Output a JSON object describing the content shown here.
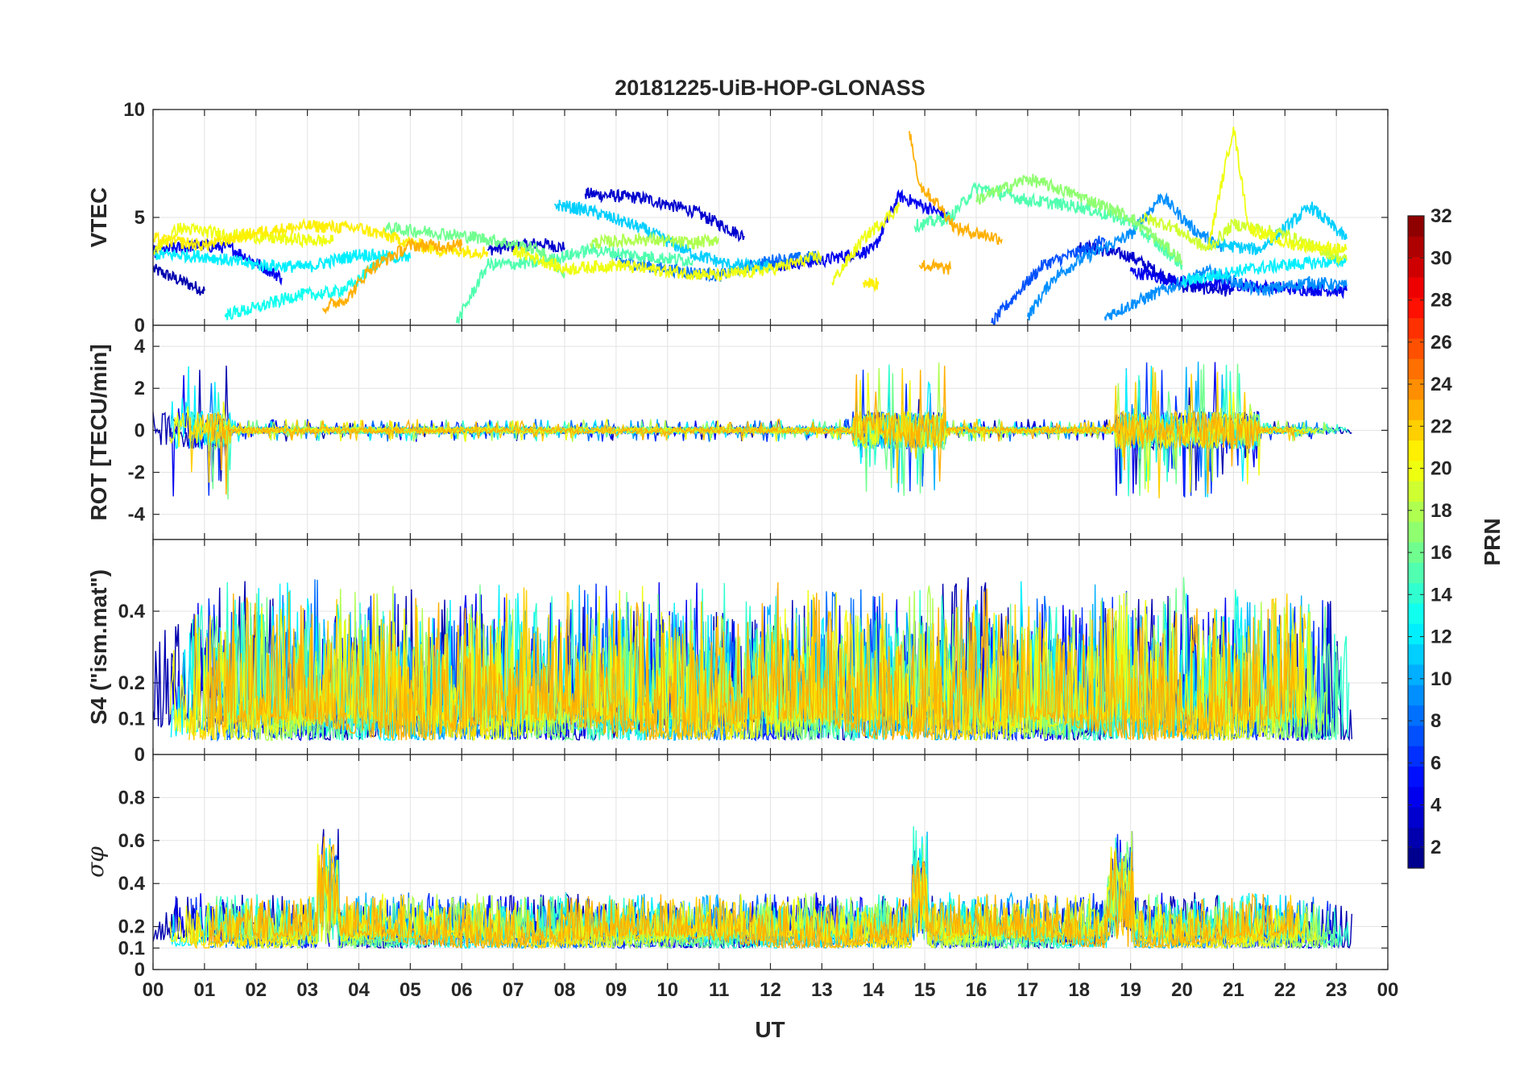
{
  "chart_data": {
    "type": "line",
    "title": "20181225-UiB-HOP-GLONASS",
    "xlabel": "UT",
    "x_ticks": [
      "00",
      "01",
      "02",
      "03",
      "04",
      "05",
      "06",
      "07",
      "08",
      "09",
      "10",
      "11",
      "12",
      "13",
      "14",
      "15",
      "16",
      "17",
      "18",
      "19",
      "20",
      "21",
      "22",
      "23",
      "00"
    ],
    "xlim": [
      0,
      24
    ],
    "grid": true,
    "colorbar": {
      "label": "PRN",
      "range": [
        1,
        32
      ],
      "ticks": [
        "2",
        "4",
        "6",
        "8",
        "10",
        "12",
        "14",
        "16",
        "18",
        "20",
        "22",
        "24",
        "26",
        "28",
        "30",
        "32"
      ],
      "colormap": "jet"
    },
    "panels": [
      {
        "id": "vtec",
        "ylabel": "VTEC",
        "ylim": [
          0,
          10
        ],
        "y_ticks": [
          "0",
          "5",
          "10"
        ],
        "series": [
          {
            "prn": 2,
            "points": [
              [
                0,
                2.6
              ],
              [
                1,
                1.6
              ]
            ]
          },
          {
            "prn": 3,
            "points": [
              [
                6.5,
                3.5
              ],
              [
                7.5,
                3.8
              ],
              [
                8.0,
                3.6
              ]
            ]
          },
          {
            "prn": 3,
            "points": [
              [
                8.4,
                6.1
              ],
              [
                9.5,
                5.9
              ],
              [
                10.5,
                5.3
              ],
              [
                11.5,
                4.1
              ]
            ]
          },
          {
            "prn": 3,
            "points": [
              [
                18.0,
                3.7
              ],
              [
                19.0,
                3.2
              ],
              [
                20.0,
                1.8
              ],
              [
                21.0,
                1.6
              ]
            ]
          },
          {
            "prn": 4,
            "points": [
              [
                0,
                3.4
              ],
              [
                0.8,
                3.7
              ],
              [
                1.5,
                3.6
              ],
              [
                2.5,
                2.2
              ]
            ]
          },
          {
            "prn": 4,
            "points": [
              [
                12.0,
                2.8
              ],
              [
                13.0,
                3.0
              ],
              [
                14.0,
                3.5
              ],
              [
                14.5,
                6.0
              ],
              [
                15.5,
                5.0
              ]
            ]
          },
          {
            "prn": 4,
            "points": [
              [
                19.0,
                2.5
              ],
              [
                20.0,
                2.0
              ],
              [
                21.0,
                1.9
              ],
              [
                22.0,
                1.7
              ],
              [
                23.2,
                1.6
              ]
            ]
          },
          {
            "prn": 7,
            "points": [
              [
                16.3,
                0.1
              ],
              [
                16.8,
                1.5
              ],
              [
                17.3,
                2.8
              ],
              [
                18.0,
                3.4
              ],
              [
                18.5,
                4.0
              ]
            ]
          },
          {
            "prn": 8,
            "points": [
              [
                9.0,
                3.0
              ],
              [
                10.0,
                2.6
              ],
              [
                11.0,
                2.3
              ],
              [
                12.0,
                3.0
              ],
              [
                13.0,
                3.2
              ]
            ]
          },
          {
            "prn": 9,
            "points": [
              [
                17.0,
                0.4
              ],
              [
                17.5,
                2.2
              ],
              [
                18.0,
                3.0
              ],
              [
                19.0,
                4.2
              ],
              [
                19.6,
                6.0
              ],
              [
                20.2,
                4.5
              ],
              [
                20.8,
                3.5
              ]
            ]
          },
          {
            "prn": 9,
            "points": [
              [
                18.5,
                0.4
              ],
              [
                19.5,
                1.5
              ],
              [
                20.5,
                2.5
              ],
              [
                21.5,
                1.6
              ],
              [
                22.5,
                2.0
              ],
              [
                23.2,
                1.8
              ]
            ]
          },
          {
            "prn": 11,
            "points": [
              [
                7.8,
                5.6
              ],
              [
                8.5,
                5.3
              ],
              [
                9.5,
                4.5
              ],
              [
                10.5,
                3.3
              ],
              [
                11.2,
                2.8
              ],
              [
                12.0,
                2.7
              ]
            ]
          },
          {
            "prn": 11,
            "points": [
              [
                20.5,
                3.8
              ],
              [
                21.5,
                3.5
              ],
              [
                22.5,
                5.5
              ],
              [
                23.2,
                4.0
              ]
            ]
          },
          {
            "prn": 12,
            "points": [
              [
                0,
                3.3
              ],
              [
                1.0,
                3.2
              ],
              [
                2.0,
                2.8
              ],
              [
                3.0,
                2.7
              ],
              [
                4.0,
                3.3
              ],
              [
                5.0,
                3.1
              ]
            ]
          },
          {
            "prn": 12,
            "points": [
              [
                20.0,
                2.0
              ],
              [
                21.0,
                2.5
              ],
              [
                22.0,
                2.8
              ],
              [
                23.2,
                3.0
              ]
            ]
          },
          {
            "prn": 13,
            "points": [
              [
                1.4,
                0.5
              ],
              [
                2.0,
                0.8
              ],
              [
                2.8,
                1.4
              ],
              [
                3.5,
                1.5
              ],
              [
                3.9,
                1.9
              ],
              [
                4.5,
                3.2
              ]
            ]
          },
          {
            "prn": 15,
            "points": [
              [
                5.9,
                0.1
              ],
              [
                6.5,
                2.8
              ],
              [
                7.5,
                2.9
              ],
              [
                8.5,
                3.5
              ],
              [
                9.5,
                3.2
              ],
              [
                10.5,
                3.0
              ]
            ]
          },
          {
            "prn": 15,
            "points": [
              [
                14.8,
                4.6
              ],
              [
                15.5,
                5.0
              ],
              [
                16.0,
                6.4
              ],
              [
                17.0,
                5.8
              ],
              [
                18.0,
                5.5
              ],
              [
                19.0,
                4.8
              ],
              [
                20.0,
                2.8
              ]
            ]
          },
          {
            "prn": 16,
            "points": [
              [
                4.5,
                4.5
              ],
              [
                5.5,
                4.3
              ],
              [
                6.5,
                4.0
              ],
              [
                7.5,
                3.5
              ],
              [
                8.0,
                2.4
              ]
            ]
          },
          {
            "prn": 17,
            "points": [
              [
                16.0,
                5.8
              ],
              [
                17.0,
                6.8
              ],
              [
                18.0,
                6.0
              ],
              [
                19.0,
                5.0
              ],
              [
                20.0,
                3.0
              ]
            ]
          },
          {
            "prn": 18,
            "points": [
              [
                8.5,
                3.8
              ],
              [
                9.5,
                4.0
              ],
              [
                10.5,
                3.8
              ],
              [
                11.0,
                4.0
              ]
            ]
          },
          {
            "prn": 19,
            "points": [
              [
                19.2,
                5.0
              ],
              [
                19.8,
                4.6
              ],
              [
                20.5,
                3.5
              ],
              [
                21.0,
                4.7
              ],
              [
                22.0,
                4.2
              ],
              [
                23.2,
                3.0
              ]
            ]
          },
          {
            "prn": 20,
            "points": [
              [
                0,
                3.4
              ],
              [
                0.5,
                4.5
              ],
              [
                1.5,
                4.2
              ],
              [
                2.5,
                4.0
              ],
              [
                3.5,
                3.9
              ]
            ]
          },
          {
            "prn": 20,
            "points": [
              [
                7.0,
                3.5
              ],
              [
                8.0,
                2.6
              ],
              [
                9.0,
                2.8
              ],
              [
                10.0,
                2.5
              ],
              [
                11.0,
                2.3
              ],
              [
                12.0,
                2.6
              ],
              [
                13.0,
                3.2
              ]
            ]
          },
          {
            "prn": 20,
            "points": [
              [
                13.2,
                2.0
              ],
              [
                13.8,
                4.0
              ],
              [
                14.5,
                5.5
              ]
            ]
          },
          {
            "prn": 20,
            "points": [
              [
                20.5,
                3.5
              ],
              [
                21.0,
                9.2
              ],
              [
                21.3,
                4.5
              ],
              [
                22.0,
                3.8
              ],
              [
                23.2,
                3.5
              ]
            ]
          },
          {
            "prn": 21,
            "points": [
              [
                0,
                4.0
              ],
              [
                1.0,
                3.7
              ],
              [
                2.0,
                4.3
              ],
              [
                3.0,
                4.6
              ],
              [
                4.0,
                4.5
              ],
              [
                5.5,
                3.5
              ],
              [
                6.5,
                3.4
              ]
            ]
          },
          {
            "prn": 21,
            "points": [
              [
                13.8,
                2.0
              ],
              [
                14.1,
                1.9
              ]
            ]
          },
          {
            "prn": 23,
            "points": [
              [
                3.3,
                0.8
              ],
              [
                3.8,
                1.3
              ],
              [
                4.2,
                2.6
              ],
              [
                5.0,
                3.7
              ],
              [
                6.0,
                3.7
              ]
            ]
          },
          {
            "prn": 23,
            "points": [
              [
                14.7,
                9.0
              ],
              [
                14.9,
                6.5
              ],
              [
                15.3,
                5.5
              ],
              [
                15.6,
                4.5
              ],
              [
                16.5,
                4.0
              ]
            ]
          },
          {
            "prn": 23,
            "points": [
              [
                14.9,
                2.8
              ],
              [
                15.5,
                2.6
              ]
            ]
          }
        ]
      },
      {
        "id": "rot",
        "ylabel": "ROT [TECU/min]",
        "ylim": [
          -5.2,
          5.0
        ],
        "y_ticks": [
          "-4",
          "-2",
          "0",
          "2",
          "4"
        ]
      },
      {
        "id": "s4",
        "ylabel": "S4 (\"ism.mat\")",
        "ylim": [
          0.0,
          0.6
        ],
        "y_ticks": [
          "0",
          "0.1",
          "0.2",
          "0.4"
        ]
      },
      {
        "id": "sigma",
        "ylabel": "σφ",
        "ylim": [
          0,
          1.0
        ],
        "y_ticks": [
          "0",
          "0.1",
          "0.2",
          "0.4",
          "0.6",
          "0.8"
        ]
      }
    ]
  }
}
